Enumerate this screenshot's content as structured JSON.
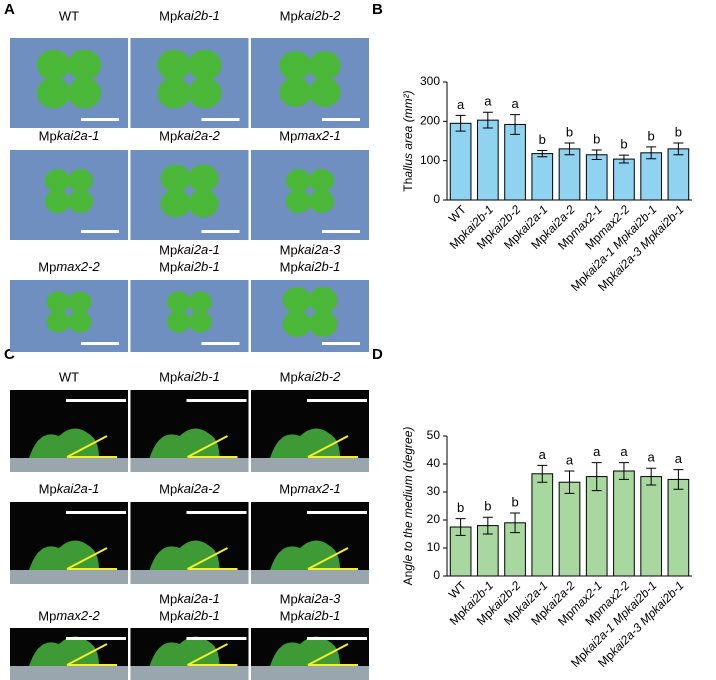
{
  "figure": {
    "panel_labels": [
      "A",
      "B",
      "C",
      "D"
    ],
    "photos_A": [
      [
        "WT"
      ],
      [
        "Mpkai2b-1"
      ],
      [
        "Mpkai2b-2"
      ],
      [
        "Mpkai2a-1"
      ],
      [
        "Mpkai2a-2"
      ],
      [
        "Mpmax2-1"
      ],
      [
        "Mpmax2-2"
      ],
      [
        "Mpkai2a-1",
        "Mpkai2b-1"
      ],
      [
        "Mpkai2a-3",
        "Mpkai2b-1"
      ]
    ],
    "photos_C": [
      [
        "WT"
      ],
      [
        "Mpkai2b-1"
      ],
      [
        "Mpkai2b-2"
      ],
      [
        "Mpkai2a-1"
      ],
      [
        "Mpkai2a-2"
      ],
      [
        "Mpmax2-1"
      ],
      [
        "Mpmax2-2"
      ],
      [
        "Mpkai2a-1",
        "Mpkai2b-1"
      ],
      [
        "Mpkai2a-3",
        "Mpkai2b-1"
      ]
    ]
  },
  "chart_data": [
    {
      "type": "bar",
      "ylabel": "Thallus area  (mm²)",
      "categories": [
        "WT",
        "Mpkai2b-1",
        "Mpkai2b-2",
        "Mpkai2a-1",
        "Mpkai2a-2",
        "Mpmax2-1",
        "Mpmax2-2",
        "Mpkai2a-1 Mpkai2b-1",
        "Mpkai2a-3 Mpkai2b-1"
      ],
      "values": [
        195,
        203,
        192,
        118,
        130,
        115,
        104,
        120,
        130
      ],
      "errors": [
        20,
        20,
        25,
        8,
        15,
        12,
        10,
        15,
        15
      ],
      "significance": [
        "a",
        "a",
        "a",
        "b",
        "b",
        "b",
        "b",
        "b",
        "b"
      ],
      "color": "#8fd3f0",
      "ylim": [
        0,
        300
      ],
      "yticks": [
        0,
        100,
        200,
        300
      ]
    },
    {
      "type": "bar",
      "ylabel": "Angle to the medium (degree)",
      "categories": [
        "WT",
        "Mpkai2b-1",
        "Mpkai2b-2",
        "Mpkai2a-1",
        "Mpkai2a-2",
        "Mpmax2-1",
        "Mpmax2-2",
        "Mpkai2a-1 Mpkai2b-1",
        "Mpkai2a-3 Mpkai2b-1"
      ],
      "values": [
        17.5,
        18,
        19,
        36.5,
        33.5,
        35.5,
        37.5,
        35.5,
        34.5
      ],
      "errors": [
        3,
        3,
        3.5,
        3,
        4,
        5,
        3,
        3,
        3.5
      ],
      "significance": [
        "b",
        "b",
        "b",
        "a",
        "a",
        "a",
        "a",
        "a",
        "a"
      ],
      "color": "#a8d8a0",
      "ylim": [
        0,
        50
      ],
      "yticks": [
        0,
        10,
        20,
        30,
        40,
        50
      ]
    }
  ]
}
